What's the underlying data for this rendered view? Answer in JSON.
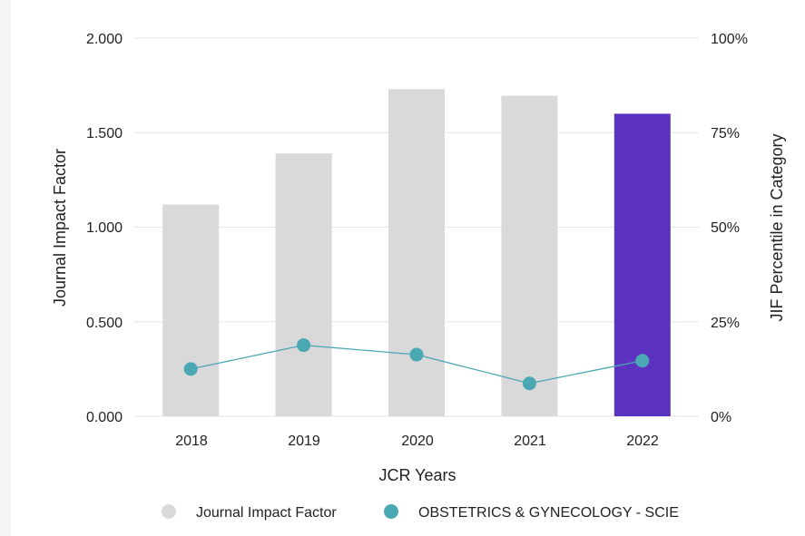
{
  "chart_data": {
    "type": "bar",
    "title": "",
    "categories": [
      "2018",
      "2019",
      "2020",
      "2021",
      "2022"
    ],
    "series": [
      {
        "name": "Journal Impact Factor",
        "kind": "bar",
        "axis": "left",
        "values": [
          1.12,
          1.39,
          1.73,
          1.695,
          1.6
        ],
        "color": "#d9d9d9",
        "highlight_color": "#5c32c0",
        "highlight_index": 4
      },
      {
        "name": "OBSTETRICS & GYNECOLOGY - SCIE",
        "kind": "line",
        "axis": "right",
        "values": [
          12.5,
          18.8,
          16.3,
          8.7,
          14.7
        ],
        "color": "#4aa8b5"
      }
    ],
    "xlabel": "JCR Years",
    "ylabel": "Journal Impact Factor",
    "ylabel_right": "JIF Percentile in Category",
    "ylim": [
      0,
      2
    ],
    "ylim_right": [
      0,
      100
    ],
    "yticks": [
      "0.000",
      "0.500",
      "1.000",
      "1.500",
      "2.000"
    ],
    "yticks_right": [
      "0%",
      "25%",
      "50%",
      "75%",
      "100%"
    ],
    "grid": true,
    "legend_position": "bottom"
  }
}
